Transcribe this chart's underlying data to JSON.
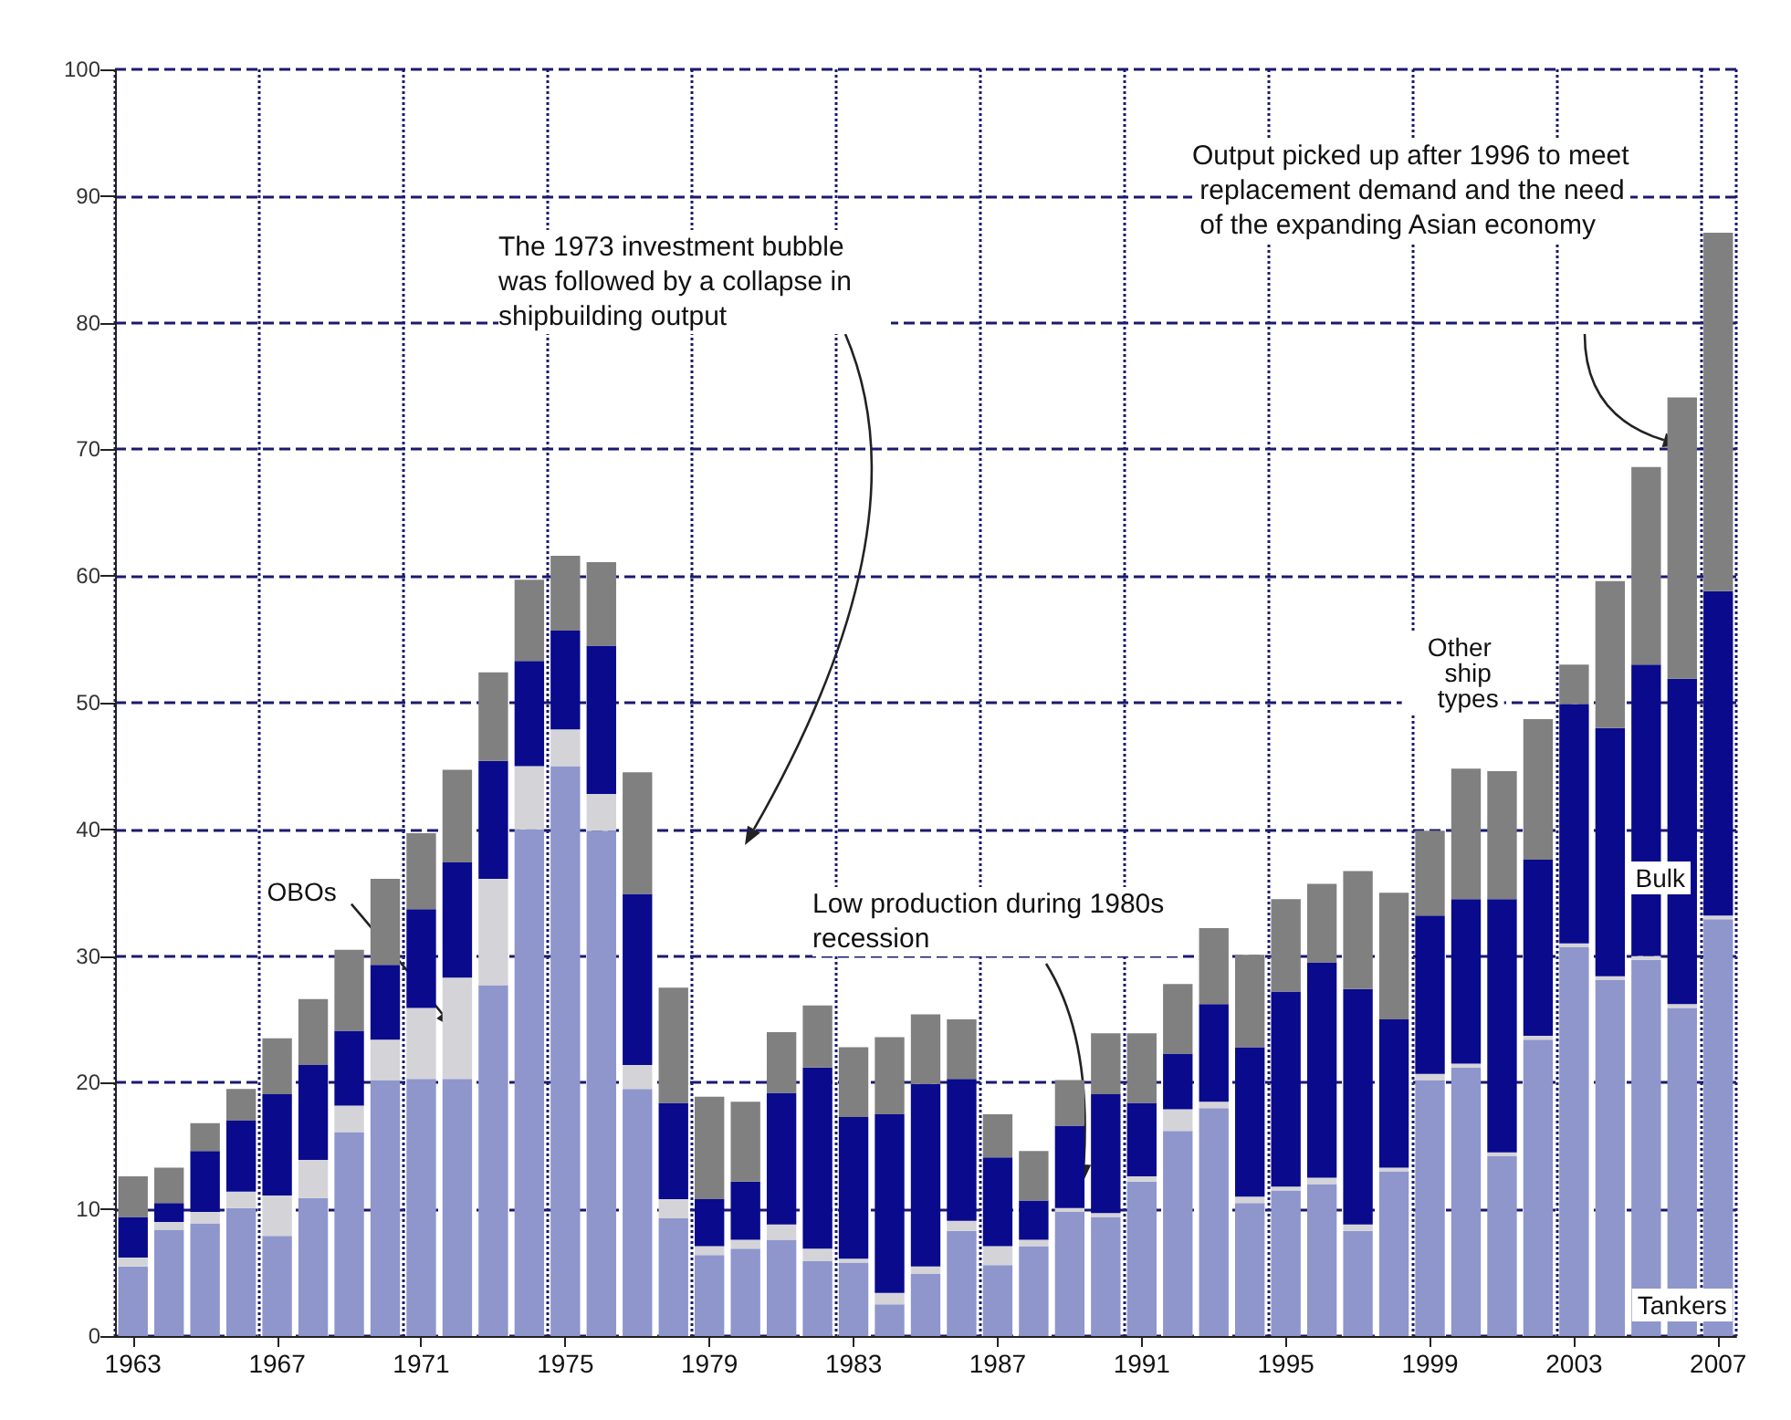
{
  "chart_data": {
    "type": "bar",
    "stacked": true,
    "categories": [
      "1963",
      null,
      null,
      null,
      "1967",
      null,
      null,
      null,
      "1971",
      null,
      null,
      null,
      "1975",
      null,
      null,
      null,
      "1979",
      null,
      null,
      null,
      "1983",
      null,
      null,
      null,
      "1987",
      null,
      null,
      null,
      "1991",
      null,
      null,
      null,
      "1995",
      null,
      null,
      null,
      "1999",
      null,
      null,
      null,
      "2003",
      null,
      null,
      null,
      "2007"
    ],
    "series": [
      {
        "name": "Tankers",
        "color": "#8e96cc",
        "values": [
          5.5,
          8.4,
          8.9,
          10.1,
          7.9,
          10.9,
          16.1,
          20.2,
          20.3,
          20.3,
          27.7,
          40.0,
          45.0,
          39.9,
          19.5,
          9.3,
          6.4,
          6.9,
          7.6,
          5.9,
          5.8,
          2.5,
          4.9,
          8.3,
          5.6,
          7.1,
          9.8,
          9.4,
          12.2,
          16.2,
          18.0,
          10.5,
          11.5,
          12.0,
          8.3,
          13.0,
          20.2,
          21.2,
          14.2,
          23.4,
          30.7,
          28.1,
          29.7,
          25.9,
          32.9
        ]
      },
      {
        "name": "OBOs",
        "color": "#d4d4d8",
        "values": [
          0.7,
          0.6,
          0.9,
          1.3,
          3.2,
          3.0,
          2.1,
          3.2,
          5.6,
          8.0,
          8.4,
          5.0,
          2.9,
          2.9,
          1.9,
          1.5,
          0.7,
          0.7,
          1.2,
          1.0,
          0.3,
          0.9,
          0.6,
          0.8,
          1.5,
          0.5,
          0.3,
          0.3,
          0.4,
          1.7,
          0.5,
          0.5,
          0.3,
          0.5,
          0.5,
          0.3,
          0.5,
          0.3,
          0.3,
          0.3,
          0.3,
          0.3,
          0.3,
          0.3,
          0.3
        ]
      },
      {
        "name": "Bulk",
        "color": "#0a0a8c",
        "values": [
          3.2,
          1.5,
          4.8,
          5.6,
          8.0,
          7.5,
          5.9,
          5.9,
          7.8,
          9.1,
          9.3,
          8.3,
          7.8,
          11.7,
          13.5,
          7.6,
          3.7,
          4.6,
          10.4,
          14.3,
          11.2,
          14.1,
          14.4,
          11.2,
          7.0,
          3.1,
          6.5,
          9.4,
          5.8,
          4.4,
          7.7,
          11.8,
          15.4,
          17.0,
          18.6,
          11.7,
          12.5,
          13.0,
          20.0,
          13.9,
          18.9,
          19.6,
          23.0,
          25.7,
          25.6
        ]
      },
      {
        "name": "Other ship types",
        "color": "#808080",
        "values": [
          3.2,
          2.8,
          2.2,
          2.5,
          4.4,
          5.2,
          6.4,
          6.8,
          6.0,
          7.3,
          7.0,
          6.4,
          5.9,
          6.6,
          9.6,
          9.1,
          8.1,
          6.3,
          4.8,
          4.9,
          5.5,
          6.1,
          5.5,
          4.7,
          3.4,
          3.9,
          3.6,
          4.8,
          5.5,
          5.5,
          6.0,
          7.3,
          7.3,
          6.2,
          9.3,
          10.0,
          6.7,
          10.3,
          10.1,
          11.1,
          3.1,
          11.6,
          15.6,
          22.2,
          28.3
        ]
      }
    ],
    "ylim": [
      0,
      100
    ],
    "yticks": [
      0,
      10,
      20,
      30,
      40,
      50,
      60,
      70,
      80,
      90,
      100
    ],
    "grid": true,
    "legend": false,
    "annotations": [
      "The 1973 investment bubble was followed by a collapse in shipbuilding output",
      "Low production during 1980s recession",
      "Output picked up after 1996 to meet replacement demand and the need of the expanding Asian economy"
    ]
  }
}
